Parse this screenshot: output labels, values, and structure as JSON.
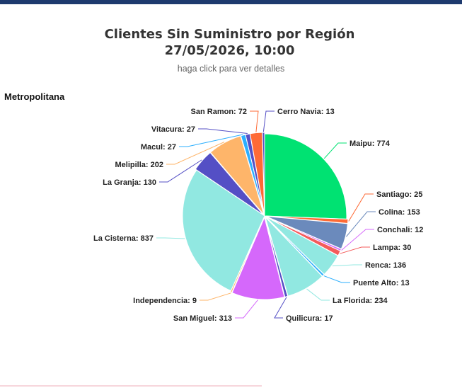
{
  "header": {
    "title_line1": "Clientes Sin Suministro por Región",
    "title_line2": "27/05/2026, 10:00",
    "subtitle": "haga click para ver detalles",
    "region": "Metropolitana"
  },
  "chart_data": {
    "type": "pie",
    "title": "Clientes Sin Suministro por Región 27/05/2026, 10:00",
    "subtitle": "haga click para ver detalles",
    "region": "Metropolitana",
    "slices": [
      {
        "label": "Maipu",
        "value": 774,
        "color": "#00e272"
      },
      {
        "label": "Santiago",
        "value": 25,
        "color": "#fe6a35"
      },
      {
        "label": "Colina",
        "value": 153,
        "color": "#6b8abc"
      },
      {
        "label": "Conchali",
        "value": 12,
        "color": "#d568fb"
      },
      {
        "label": "Lampa",
        "value": 30,
        "color": "#f45b5b"
      },
      {
        "label": "Renca",
        "value": 136,
        "color": "#91e8e1"
      },
      {
        "label": "Puente Alto",
        "value": 13,
        "color": "#2caffe"
      },
      {
        "label": "La Florida",
        "value": 234,
        "color": "#91e8e1"
      },
      {
        "label": "Quilicura",
        "value": 17,
        "color": "#544fc5"
      },
      {
        "label": "San Miguel",
        "value": 313,
        "color": "#d568fb"
      },
      {
        "label": "Independencia",
        "value": 9,
        "color": "#feb56a"
      },
      {
        "label": "La Cisterna",
        "value": 837,
        "color": "#91e8e1"
      },
      {
        "label": "La Granja",
        "value": 130,
        "color": "#544fc5"
      },
      {
        "label": "Melipilla",
        "value": 202,
        "color": "#feb56a"
      },
      {
        "label": "Macul",
        "value": 27,
        "color": "#2caffe"
      },
      {
        "label": "Vitacura",
        "value": 27,
        "color": "#544fc5"
      },
      {
        "label": "San Ramon",
        "value": 72,
        "color": "#fe6a35"
      },
      {
        "label": "Cerro Navia",
        "value": 13,
        "color": "#544fc5"
      }
    ]
  }
}
